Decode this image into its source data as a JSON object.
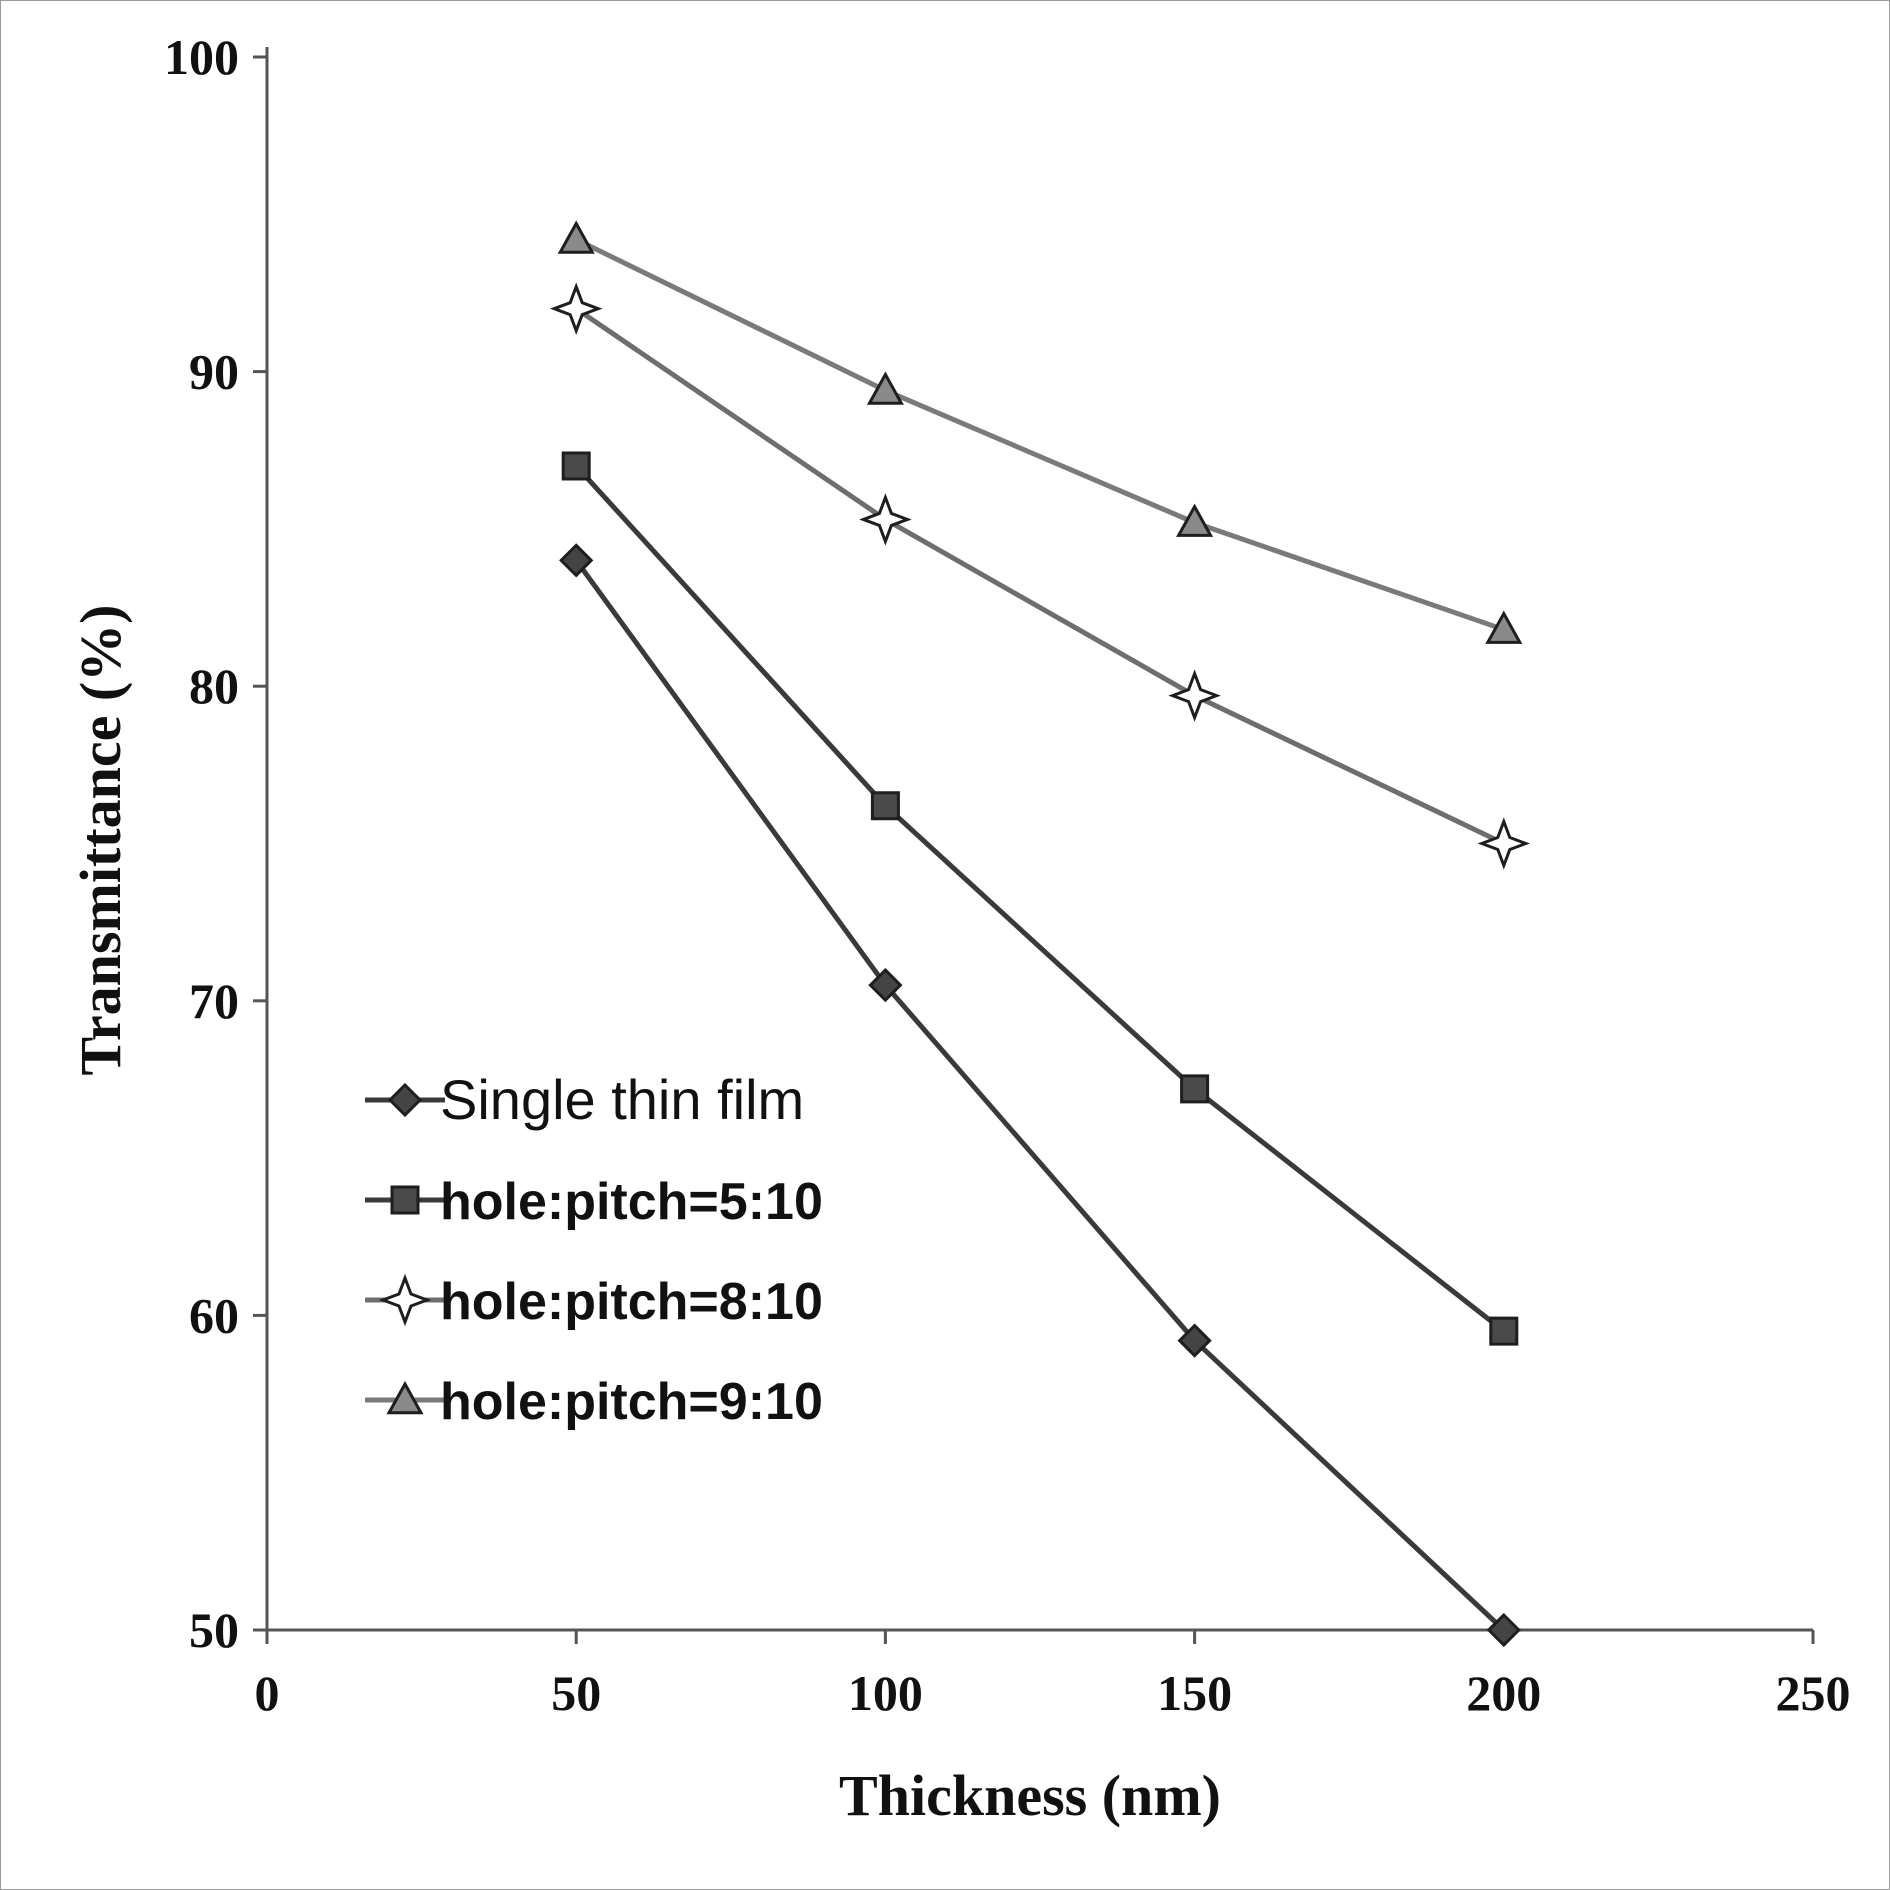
{
  "chart_data": {
    "type": "line",
    "xlabel": "Thickness (nm)",
    "ylabel": "Transmittance (%)",
    "xlim": [
      0,
      250
    ],
    "ylim": [
      50,
      100
    ],
    "xticks": [
      0,
      50,
      100,
      150,
      200,
      250
    ],
    "yticks": [
      50,
      60,
      70,
      80,
      90,
      100
    ],
    "grid": false,
    "legend_position": "left-center",
    "x": [
      50,
      100,
      150,
      200
    ],
    "series": [
      {
        "name": "Single thin film",
        "marker": "diamond",
        "values": [
          84.0,
          70.5,
          59.2,
          50.0
        ],
        "color": "#3a3a3a",
        "marker_color": "#444444"
      },
      {
        "name": "hole:pitch=5:10",
        "marker": "square",
        "values": [
          87.0,
          76.2,
          67.2,
          59.5
        ],
        "color": "#3a3a3a",
        "marker_color": "#4a4a4a"
      },
      {
        "name": "hole:pitch=8:10",
        "marker": "star4",
        "values": [
          92.0,
          85.3,
          79.7,
          75.0
        ],
        "color": "#6e6e6e",
        "marker_color": "#ffffff"
      },
      {
        "name": "hole:pitch=9:10",
        "marker": "triangle",
        "values": [
          94.2,
          89.4,
          85.2,
          81.8
        ],
        "color": "#7a7a7a",
        "marker_color": "#8a8a8a"
      }
    ]
  }
}
